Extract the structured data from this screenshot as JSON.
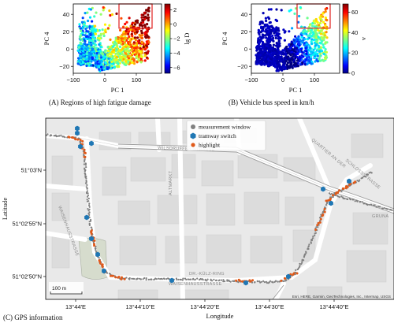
{
  "chart_data": [
    {
      "panel": "A",
      "type": "scatter",
      "caption": "(A) Regions of high fatigue damage",
      "xlabel": "PC 1",
      "ylabel": "PC 4",
      "xlim": [
        -100,
        180
      ],
      "ylim": [
        -28,
        52
      ],
      "xticks": [
        -100,
        0,
        100
      ],
      "yticks": [
        -20,
        0,
        20,
        40
      ],
      "colorbar": {
        "label": "lg D",
        "min": -6.8,
        "max": 2.8,
        "ticks": [
          2,
          0,
          -2,
          -4,
          -6
        ]
      },
      "highlight_box": {
        "x": [
          45,
          150
        ],
        "y": [
          24,
          52
        ]
      }
    },
    {
      "panel": "B",
      "type": "scatter",
      "caption": "(B) Vehicle bus speed in km/h",
      "xlabel": "PC 1",
      "ylabel": "PC 4",
      "xlim": [
        -100,
        180
      ],
      "ylim": [
        -28,
        52
      ],
      "xticks": [
        -100,
        0,
        100
      ],
      "yticks": [
        -20,
        0,
        20,
        40
      ],
      "colorbar": {
        "label": "v",
        "min": 0,
        "max": 68,
        "ticks": [
          60,
          40,
          20,
          0
        ]
      },
      "highlight_box": {
        "x": [
          45,
          150
        ],
        "y": [
          24,
          52
        ]
      }
    },
    {
      "panel": "C",
      "type": "map",
      "caption": "(C) GPS information",
      "xlabel": "Longitude",
      "ylabel": "Latitude",
      "xticks": [
        "13°44'E",
        "13°44'10\"E",
        "13°44'20\"E",
        "13°44'30\"E",
        "13°44'40\"E"
      ],
      "yticks": [
        "51°03'N",
        "51°02'55\"N",
        "51°02'50\"N"
      ],
      "legend": [
        {
          "name": "measurement window",
          "color": "#808080"
        },
        {
          "name": "tramway switch",
          "color": "#1f77b4"
        },
        {
          "name": "highlight",
          "color": "#e05a1a"
        }
      ],
      "street_labels": [
        "WILSDRUFFER STRASSE",
        "ALTMARKT",
        "QUARTIER AN DER",
        "SCHLOSSSTRASSE",
        "GRUNA",
        "WAISENHAUSSTRASSE",
        "DR.-KÜLZ-RING",
        "WAISENHAUSSTRASSE"
      ],
      "scale_label": "100 m",
      "attribution": "Esri, HERE, Garmin, GeoTechnologies, Inc., Intermap, USGS"
    }
  ]
}
